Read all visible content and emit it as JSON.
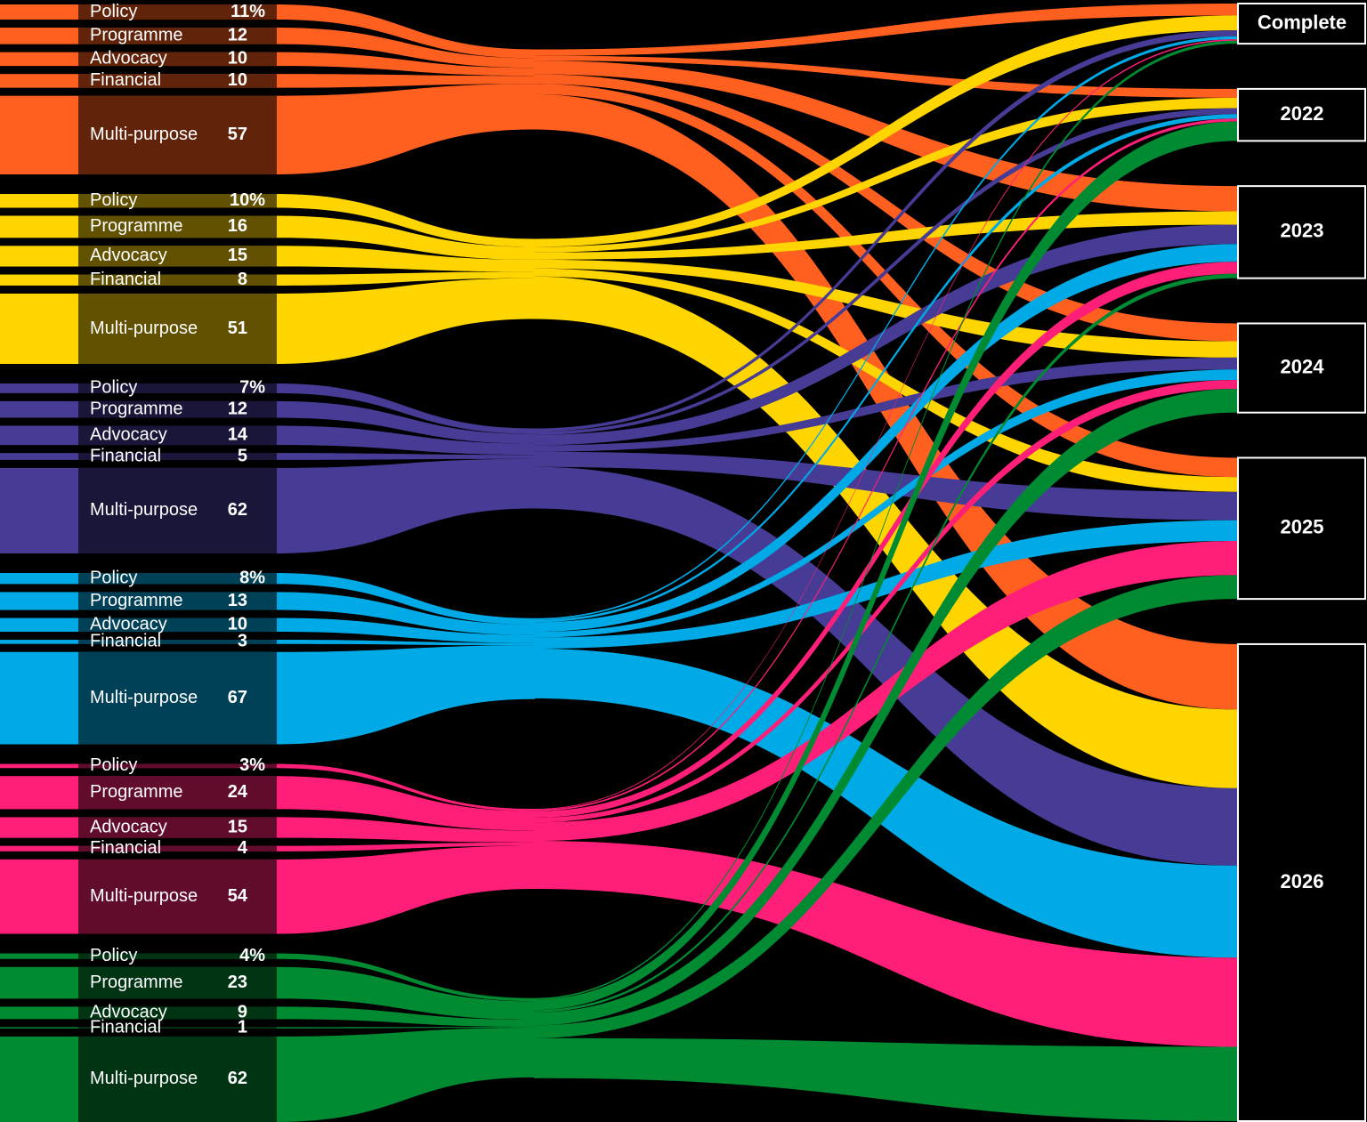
{
  "chart_data": {
    "type": "sankey",
    "targets": [
      "Complete",
      "2022",
      "2023",
      "2024",
      "2025",
      "2026"
    ],
    "groups": [
      {
        "color": "#ff5f1f",
        "categories": [
          "Policy",
          "Programme",
          "Advocacy",
          "Financial",
          "Multi-purpose"
        ],
        "values": [
          11,
          12,
          10,
          10,
          57
        ],
        "value_labels": [
          "11%",
          "12",
          "10",
          "10",
          "57"
        ],
        "flows": [
          8,
          6,
          17,
          12,
          13,
          44
        ]
      },
      {
        "color": "#ffd500",
        "categories": [
          "Policy",
          "Programme",
          "Advocacy",
          "Financial",
          "Multi-purpose"
        ],
        "values": [
          10,
          16,
          15,
          8,
          51
        ],
        "value_labels": [
          "10%",
          "16",
          "15",
          "8",
          "51"
        ],
        "flows": [
          10,
          7,
          9,
          11,
          10,
          53
        ]
      },
      {
        "color": "#463c96",
        "categories": [
          "Policy",
          "Programme",
          "Advocacy",
          "Financial",
          "Multi-purpose"
        ],
        "values": [
          7,
          12,
          14,
          5,
          62
        ],
        "value_labels": [
          "7%",
          "12",
          "14",
          "5",
          "62"
        ],
        "flows": [
          4,
          4,
          13,
          8,
          19,
          52
        ]
      },
      {
        "color": "#00aae6",
        "categories": [
          "Policy",
          "Programme",
          "Advocacy",
          "Financial",
          "Multi-purpose"
        ],
        "values": [
          8,
          13,
          10,
          3,
          67
        ],
        "value_labels": [
          "8%",
          "13",
          "10",
          "3",
          "67"
        ],
        "flows": [
          2,
          3,
          12,
          7,
          14,
          62
        ]
      },
      {
        "color": "#ff1f78",
        "categories": [
          "Policy",
          "Programme",
          "Advocacy",
          "Financial",
          "Multi-purpose"
        ],
        "values": [
          3,
          24,
          15,
          4,
          54
        ],
        "value_labels": [
          "3%",
          "24",
          "15",
          "4",
          "54"
        ],
        "flows": [
          1,
          2,
          8,
          6,
          23,
          60
        ]
      },
      {
        "color": "#008a32",
        "categories": [
          "Policy",
          "Programme",
          "Advocacy",
          "Financial",
          "Multi-purpose"
        ],
        "values": [
          4,
          23,
          9,
          1,
          62
        ],
        "value_labels": [
          "4%",
          "23",
          "9",
          "1",
          "62"
        ],
        "flows": [
          2,
          13,
          3,
          16,
          16,
          50
        ]
      }
    ]
  }
}
